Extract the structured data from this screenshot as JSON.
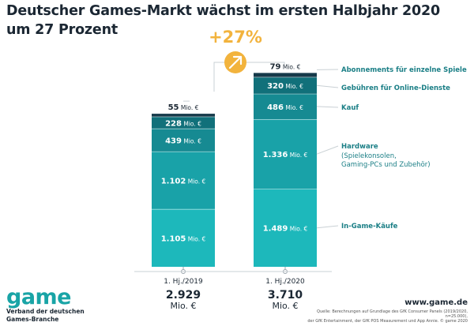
{
  "title": "Deutscher Games-Markt wächst im ersten Halbjahr 2020 um 27 Prozent",
  "growth": "+27%",
  "colors": {
    "top_segment": "#163a4a",
    "segment_2": "#11707a",
    "segment_3": "#168a92",
    "segment_4": "#19a2a8",
    "segment_5": "#1db8bb",
    "label_text": "#1b7f86",
    "arrow_circle": "#f2b33d"
  },
  "chart_data": {
    "type": "bar",
    "stacked": true,
    "unit": "Mio. €",
    "categories": [
      "1. Hj./2019",
      "1. Hj./2020"
    ],
    "totals": [
      {
        "value": "2.929",
        "unit": "Mio. €"
      },
      {
        "value": "3.710",
        "unit": "Mio. €"
      }
    ],
    "series": [
      {
        "name": "In-Game-Käufe",
        "values": [
          1105,
          1489
        ],
        "labels": [
          "1.105",
          "1.489"
        ]
      },
      {
        "name": "Hardware",
        "detail": "(Spielekonsolen, Gaming-PCs und Zubehör)",
        "values": [
          1102,
          1336
        ],
        "labels": [
          "1.102",
          "1.336"
        ]
      },
      {
        "name": "Kauf",
        "values": [
          439,
          486
        ],
        "labels": [
          "439",
          "486"
        ]
      },
      {
        "name": "Gebühren für Online-Dienste",
        "values": [
          228,
          320
        ],
        "labels": [
          "228",
          "320"
        ]
      },
      {
        "name": "Abonnements für einzelne Spiele",
        "values": [
          55,
          79
        ],
        "labels": [
          "55",
          "79"
        ]
      }
    ]
  },
  "logo": {
    "word": "game",
    "line1": "Verband der deutschen",
    "line2": "Games-Branche"
  },
  "website": "www.game.de",
  "source": {
    "line1": "Quelle: Berechnungen auf Grundlage des GfK Consumer Panels (2019/2020, n=25.000),",
    "line2": "der GfK Entertainment, der GfK POS Measurement und App Annie. © game 2020"
  }
}
